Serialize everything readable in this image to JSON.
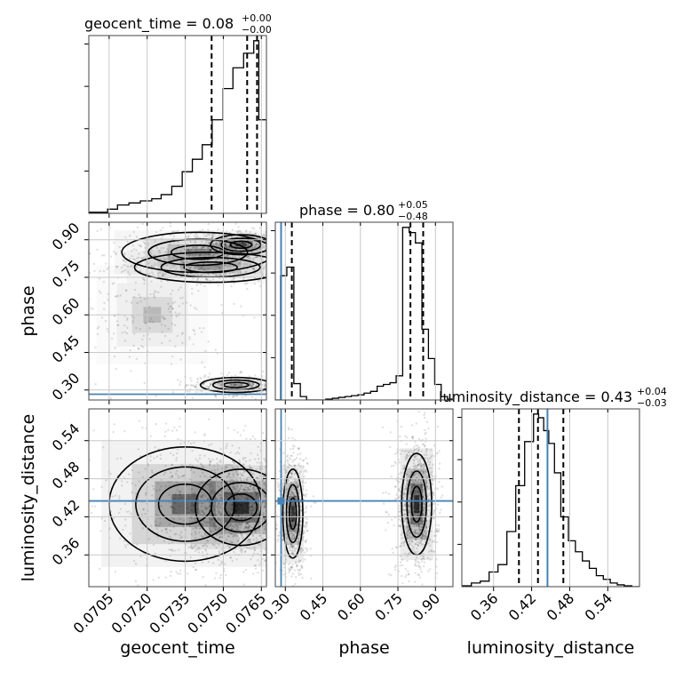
{
  "chart_data": {
    "type": "corner",
    "parameters": [
      "geocent_time",
      "phase",
      "luminosity_distance"
    ],
    "titles": {
      "geocent_time": {
        "name": "geocent_time",
        "median": "0.08",
        "plus": "+0.00",
        "minus": "−0.00"
      },
      "phase": {
        "name": "phase",
        "median": "0.80",
        "plus": "+0.05",
        "minus": "−0.48"
      },
      "luminosity_distance": {
        "name": "luminosity_distance",
        "median": "0.43",
        "plus": "+0.04",
        "minus": "−0.03"
      }
    },
    "axes": {
      "geocent_time": {
        "range": [
          0.0697,
          0.0767
        ],
        "ticks": [
          "0.0705",
          "0.0720",
          "0.0735",
          "0.0750",
          "0.0765"
        ],
        "tick_values": [
          0.0705,
          0.072,
          0.0735,
          0.075,
          0.0765
        ]
      },
      "phase": {
        "range": [
          0.26,
          0.97
        ],
        "ticks": [
          "0.30",
          "0.45",
          "0.60",
          "0.75",
          "0.90"
        ],
        "tick_values": [
          0.3,
          0.45,
          0.6,
          0.75,
          0.9
        ]
      },
      "luminosity_distance": {
        "range": [
          0.31,
          0.59
        ],
        "ticks": [
          "0.36",
          "0.42",
          "0.48",
          "0.54"
        ],
        "tick_values": [
          0.36,
          0.42,
          0.48,
          0.54
        ]
      }
    },
    "truths": {
      "phase": 0.283,
      "luminosity_distance": 0.445
    },
    "quantiles": {
      "geocent_time": [
        0.07454,
        0.07594,
        0.07633
      ],
      "phase": [
        0.326,
        0.8,
        0.851
      ],
      "luminosity_distance": [
        0.4,
        0.43,
        0.47
      ]
    },
    "histograms": {
      "geocent_time": {
        "edges": [
          0.0697,
          0.07044,
          0.07083,
          0.07128,
          0.07173,
          0.07218,
          0.07255,
          0.07297,
          0.07338,
          0.07378,
          0.07417,
          0.07456,
          0.07499,
          0.07538,
          0.0758,
          0.0762,
          0.0764,
          0.0766,
          0.0767
        ],
        "counts": [
          0.005,
          0.02,
          0.04,
          0.05,
          0.06,
          0.07,
          0.09,
          0.13,
          0.2,
          0.26,
          0.33,
          0.45,
          0.6,
          0.7,
          0.77,
          0.83,
          0.45,
          0.45
        ]
      },
      "phase": {
        "edges": [
          0.26,
          0.281,
          0.306,
          0.334,
          0.36,
          0.385,
          0.411,
          0.437,
          0.462,
          0.488,
          0.513,
          0.539,
          0.564,
          0.59,
          0.615,
          0.641,
          0.667,
          0.692,
          0.718,
          0.743,
          0.769,
          0.795,
          0.82,
          0.846,
          0.872,
          0.897,
          0.923,
          0.948,
          0.97
        ],
        "counts": [
          0.0,
          0.72,
          0.77,
          0.095,
          0.02,
          0.0,
          0.0,
          0.0,
          0.005,
          0.01,
          0.015,
          0.02,
          0.025,
          0.03,
          0.04,
          0.05,
          0.08,
          0.09,
          0.1,
          0.14,
          1.0,
          0.97,
          0.91,
          0.41,
          0.24,
          0.09,
          0.02,
          0.005
        ]
      },
      "luminosity_distance": {
        "edges": [
          0.31,
          0.325,
          0.339,
          0.353,
          0.367,
          0.381,
          0.395,
          0.409,
          0.423,
          0.431,
          0.439,
          0.447,
          0.456,
          0.466,
          0.478,
          0.489,
          0.5,
          0.511,
          0.522,
          0.533,
          0.544,
          0.555,
          0.566,
          0.578,
          0.59
        ],
        "counts": [
          0.005,
          0.02,
          0.03,
          0.08,
          0.12,
          0.3,
          0.55,
          0.79,
          0.94,
          0.92,
          0.85,
          0.78,
          0.62,
          0.38,
          0.25,
          0.19,
          0.14,
          0.1,
          0.06,
          0.04,
          0.02,
          0.01,
          0.005,
          0.0
        ]
      }
    },
    "pairs": [
      {
        "x": "geocent_time",
        "y": "phase"
      },
      {
        "x": "geocent_time",
        "y": "luminosity_distance"
      },
      {
        "x": "phase",
        "y": "luminosity_distance"
      }
    ],
    "density_clusters": {
      "geocent_time__phase": [
        {
          "x": 0.0757,
          "y": 0.88,
          "sx": 0.0006,
          "sy": 0.02,
          "n": 500
        },
        {
          "x": 0.074,
          "y": 0.85,
          "sx": 0.0015,
          "sy": 0.04,
          "n": 350
        },
        {
          "x": 0.0745,
          "y": 0.79,
          "sx": 0.0015,
          "sy": 0.03,
          "n": 300
        },
        {
          "x": 0.0755,
          "y": 0.32,
          "sx": 0.0007,
          "sy": 0.015,
          "n": 300
        },
        {
          "x": 0.0722,
          "y": 0.6,
          "sx": 0.001,
          "sy": 0.09,
          "n": 200
        }
      ],
      "geocent_time__luminosity_distance": [
        {
          "x": 0.0757,
          "y": 0.435,
          "sx": 0.0009,
          "sy": 0.03,
          "n": 1200
        },
        {
          "x": 0.0735,
          "y": 0.44,
          "sx": 0.0015,
          "sy": 0.045,
          "n": 500
        }
      ],
      "phase__luminosity_distance": [
        {
          "x": 0.33,
          "y": 0.425,
          "sx": 0.02,
          "sy": 0.035,
          "n": 700
        },
        {
          "x": 0.825,
          "y": 0.44,
          "sx": 0.03,
          "sy": 0.04,
          "n": 1000
        }
      ]
    },
    "grid": true
  }
}
